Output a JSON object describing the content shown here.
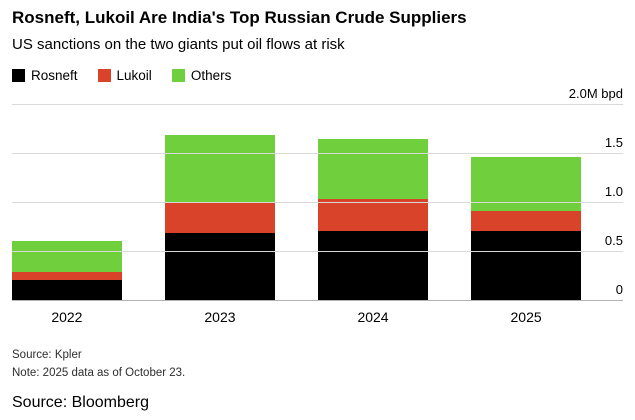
{
  "header": {
    "title": "Rosneft, Lukoil Are India's Top Russian Crude Suppliers",
    "subtitle": "US sanctions on the two giants put oil flows at risk"
  },
  "legend": [
    {
      "label": "Rosneft",
      "color": "#000000"
    },
    {
      "label": "Lukoil",
      "color": "#d8432a"
    },
    {
      "label": "Others",
      "color": "#70cf3d"
    }
  ],
  "chart_data": {
    "type": "bar",
    "stacked": true,
    "categories": [
      "2022",
      "2023",
      "2024",
      "2025"
    ],
    "series": [
      {
        "name": "Rosneft",
        "color": "#000000",
        "values": [
          0.22,
          0.7,
          0.72,
          0.72
        ]
      },
      {
        "name": "Lukoil",
        "color": "#d8432a",
        "values": [
          0.08,
          0.3,
          0.32,
          0.2
        ]
      },
      {
        "name": "Others",
        "color": "#70cf3d",
        "values": [
          0.32,
          0.7,
          0.62,
          0.55
        ]
      }
    ],
    "title": "Rosneft, Lukoil Are India's Top Russian Crude Suppliers",
    "xlabel": "",
    "ylabel": "M bpd",
    "ylim": [
      0,
      2.0
    ],
    "y_ticks": [
      0,
      0.5,
      1.0,
      1.5
    ],
    "y_tick_labels": [
      "0",
      "0.5",
      "1.0",
      "1.5"
    ],
    "y_top_label": "2.0M bpd",
    "grid": true,
    "legend_position": "top-left"
  },
  "footer": {
    "source": "Source: Kpler",
    "note": "Note: 2025 data as of October 23.",
    "attribution": "Source: Bloomberg"
  }
}
